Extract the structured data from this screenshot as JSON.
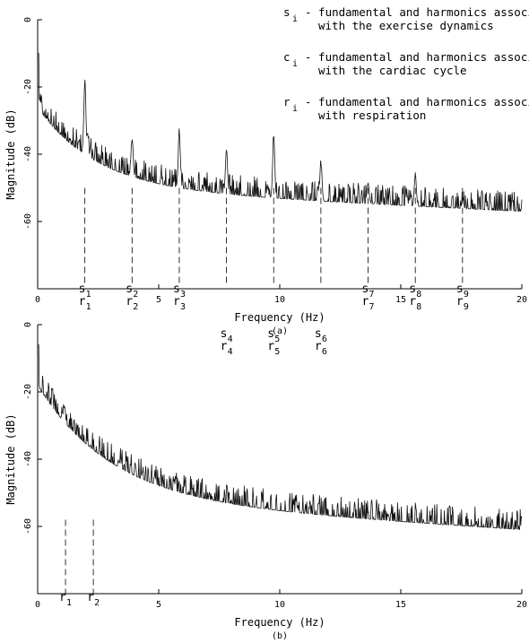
{
  "legend": [
    {
      "sym": "s",
      "sub": "i",
      "line1": "- fundamental and harmonics associated",
      "line2": "with the exercise dynamics"
    },
    {
      "sym": "c",
      "sub": "i",
      "line1": "- fundamental and harmonics associated",
      "line2": "with the cardiac cycle"
    },
    {
      "sym": "r",
      "sub": "i",
      "line1": "- fundamental and harmonics associated",
      "line2": "with respiration"
    }
  ],
  "chart_data": [
    {
      "type": "line",
      "panel_label": "(a)",
      "xlabel": "Frequency (Hz)",
      "ylabel": "Magnitude (dB)",
      "xlim": [
        0,
        20
      ],
      "ylim": [
        -80,
        0
      ],
      "x_ticks": [
        0,
        5,
        10,
        15,
        20
      ],
      "y_ticks": [
        0,
        -20,
        -40,
        -60
      ],
      "grid": false,
      "peaks": [
        {
          "x": 1.95,
          "y": -18
        },
        {
          "x": 2.05,
          "y": -33
        },
        {
          "x": 3.9,
          "y": -35
        },
        {
          "x": 5.85,
          "y": -33
        },
        {
          "x": 7.8,
          "y": -38
        },
        {
          "x": 9.75,
          "y": -34
        },
        {
          "x": 11.7,
          "y": -42
        },
        {
          "x": 13.65,
          "y": -48
        },
        {
          "x": 15.6,
          "y": -46
        },
        {
          "x": 17.55,
          "y": -54
        }
      ],
      "markers": [
        {
          "x": 1.95,
          "labels": [
            {
              "sym": "s",
              "sub": "1"
            },
            {
              "sym": "r",
              "sub": "1"
            }
          ]
        },
        {
          "x": 3.9,
          "labels": [
            {
              "sym": "s",
              "sub": "2"
            },
            {
              "sym": "r",
              "sub": "2"
            }
          ]
        },
        {
          "x": 5.85,
          "labels": [
            {
              "sym": "s",
              "sub": "3"
            },
            {
              "sym": "r",
              "sub": "3"
            }
          ]
        },
        {
          "x": 7.8,
          "labels": [
            {
              "sym": "s",
              "sub": "4"
            },
            {
              "sym": "r",
              "sub": "4"
            }
          ],
          "row": "lower"
        },
        {
          "x": 9.75,
          "labels": [
            {
              "sym": "s",
              "sub": "5"
            },
            {
              "sym": "r",
              "sub": "5"
            }
          ],
          "row": "lower"
        },
        {
          "x": 11.7,
          "labels": [
            {
              "sym": "s",
              "sub": "6"
            },
            {
              "sym": "r",
              "sub": "6"
            }
          ],
          "row": "lower"
        },
        {
          "x": 13.65,
          "labels": [
            {
              "sym": "s",
              "sub": "7"
            },
            {
              "sym": "r",
              "sub": "7"
            }
          ]
        },
        {
          "x": 15.6,
          "labels": [
            {
              "sym": "s",
              "sub": "8"
            },
            {
              "sym": "r",
              "sub": "8"
            }
          ]
        },
        {
          "x": 17.55,
          "labels": [
            {
              "sym": "s",
              "sub": "9"
            },
            {
              "sym": "r",
              "sub": "9"
            }
          ]
        }
      ]
    },
    {
      "type": "line",
      "panel_label": "(b)",
      "xlabel": "Frequency (Hz)",
      "ylabel": "Magnitude (dB)",
      "xlim": [
        0,
        20
      ],
      "ylim": [
        -80,
        0
      ],
      "x_ticks": [
        0,
        5,
        10,
        15,
        20
      ],
      "y_ticks": [
        0,
        -20,
        -40,
        -60
      ],
      "grid": false,
      "peaks": [
        {
          "x": 1.1,
          "y": -24
        },
        {
          "x": 2.2,
          "y": -36
        },
        {
          "x": 3.4,
          "y": -41
        }
      ],
      "markers": [
        {
          "x": 1.15,
          "labels": [
            {
              "sym": "r",
              "sub": "1"
            }
          ]
        },
        {
          "x": 2.3,
          "labels": [
            {
              "sym": "r",
              "sub": "2"
            }
          ]
        }
      ]
    }
  ]
}
